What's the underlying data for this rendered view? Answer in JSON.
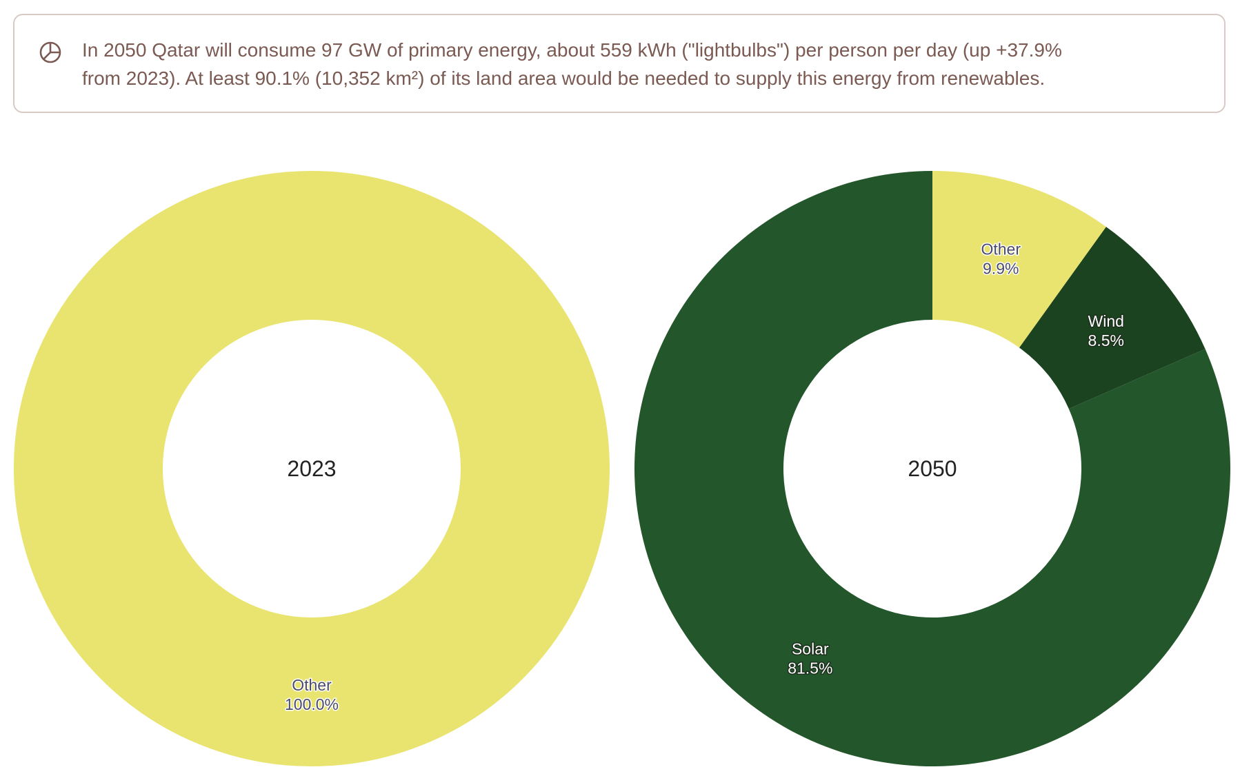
{
  "summary": {
    "line1": "In 2050 Qatar will consume 97 GW of primary energy, about 559 kWh (\"lightbulbs\") per person per day (up +37.9%",
    "line2": "from 2023). At least 90.1% (10,352 km²) of its land area would be needed to supply this energy from renewables.",
    "icon": "pie-chart-icon",
    "text_color": "#7a5a52",
    "border_color": "#d9c9c4"
  },
  "chart_data": [
    {
      "type": "pie",
      "center_label": "2023",
      "slices": [
        {
          "label": "Other",
          "value": 100.0,
          "value_label": "100.0%",
          "color": "#e8e46f"
        }
      ]
    },
    {
      "type": "pie",
      "center_label": "2050",
      "slices": [
        {
          "label": "Other",
          "value": 9.9,
          "value_label": "9.9%",
          "color": "#e8e46f"
        },
        {
          "label": "Wind",
          "value": 8.5,
          "value_label": "8.5%",
          "color": "#1c4320"
        },
        {
          "label": "Solar",
          "value": 81.5,
          "value_label": "81.5%",
          "color": "#24562c"
        }
      ]
    }
  ]
}
